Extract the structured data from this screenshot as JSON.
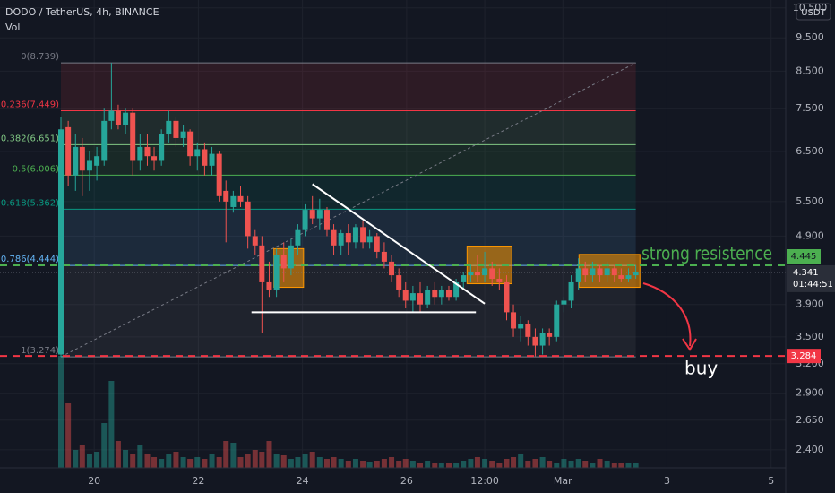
{
  "chart_data": {
    "type": "candlestick",
    "title": "DODO / TetherUS, 4h, BINANCE",
    "volume_label": "Vol",
    "currency": "USDT",
    "up_color": "#26a69a",
    "down_color": "#ef5350",
    "grid": true,
    "log_y": true,
    "xlim": [
      18.19,
      33.28
    ],
    "xticks": [
      20,
      22,
      24,
      26,
      {
        "value": 27.5,
        "label": "12:00"
      },
      {
        "value": 29,
        "label": "Mar"
      },
      {
        "value": 31,
        "label": "3"
      },
      {
        "value": 33,
        "label": "5"
      }
    ],
    "ylim": [
      2.26,
      10.78
    ],
    "yticks": [
      {
        "value": 10.5,
        "label": "10.500"
      },
      {
        "value": 9.5,
        "label": "9.500"
      },
      {
        "value": 8.5,
        "label": "8.500"
      },
      {
        "value": 7.5,
        "label": "7.500"
      },
      {
        "value": 6.5,
        "label": "6.500"
      },
      {
        "value": 5.5,
        "label": "5.500"
      },
      {
        "value": 4.9,
        "label": "4.900"
      },
      {
        "value": 3.9,
        "label": "3.900"
      },
      {
        "value": 3.5,
        "label": "3.500"
      },
      {
        "value": 3.2,
        "label": "3.200"
      },
      {
        "value": 2.9,
        "label": "2.900"
      },
      {
        "value": 2.65,
        "label": "2.650"
      },
      {
        "value": 2.4,
        "label": "2.400"
      }
    ],
    "x": [
      19.36,
      19.5,
      19.64,
      19.77,
      19.91,
      20.05,
      20.19,
      20.33,
      20.46,
      20.6,
      20.74,
      20.88,
      21.02,
      21.15,
      21.29,
      21.43,
      21.57,
      21.71,
      21.84,
      21.98,
      22.12,
      22.26,
      22.4,
      22.53,
      22.67,
      22.81,
      22.95,
      23.09,
      23.22,
      23.36,
      23.5,
      23.64,
      23.78,
      23.91,
      24.05,
      24.19,
      24.33,
      24.47,
      24.6,
      24.74,
      24.88,
      25.02,
      25.16,
      25.29,
      25.43,
      25.57,
      25.71,
      25.85,
      25.98,
      26.12,
      26.26,
      26.4,
      26.54,
      26.67,
      26.81,
      26.95,
      27.09,
      27.23,
      27.36,
      27.5,
      27.64,
      27.78,
      27.92,
      28.05,
      28.19,
      28.33,
      28.47,
      28.61,
      28.74,
      28.88,
      29.02,
      29.16,
      29.3,
      29.43,
      29.57,
      29.71,
      29.85,
      29.99,
      30.12,
      30.26,
      30.4
    ],
    "open": [
      3.3,
      7.05,
      6.0,
      6.6,
      6.1,
      6.2,
      6.3,
      7.2,
      7.45,
      7.1,
      7.4,
      6.3,
      6.6,
      6.4,
      6.3,
      6.9,
      7.2,
      6.8,
      6.95,
      6.4,
      6.55,
      6.2,
      6.45,
      5.7,
      5.4,
      5.6,
      5.5,
      4.9,
      4.75,
      4.2,
      4.1,
      4.6,
      4.4,
      4.75,
      5.0,
      5.35,
      5.2,
      5.35,
      5.0,
      4.75,
      4.95,
      4.8,
      5.05,
      4.8,
      4.9,
      4.65,
      4.5,
      4.3,
      4.1,
      3.95,
      4.05,
      3.9,
      4.1,
      4.0,
      4.1,
      4.0,
      4.2,
      4.3,
      4.35,
      4.3,
      4.4,
      4.25,
      4.2,
      3.8,
      3.6,
      3.65,
      3.5,
      3.4,
      3.55,
      3.5,
      3.9,
      3.95,
      4.2,
      4.4,
      4.3,
      4.4,
      4.3,
      4.4,
      4.3,
      4.25,
      4.3
    ],
    "high": [
      7.3,
      7.2,
      6.9,
      6.8,
      6.5,
      6.6,
      7.5,
      8.739,
      7.6,
      7.5,
      7.5,
      6.9,
      6.9,
      6.6,
      7.0,
      7.45,
      7.3,
      7.1,
      7.0,
      6.7,
      6.7,
      6.6,
      6.5,
      5.9,
      5.7,
      5.8,
      5.6,
      5.0,
      4.9,
      4.5,
      4.7,
      4.8,
      4.85,
      5.1,
      5.45,
      5.6,
      5.55,
      5.4,
      5.1,
      5.0,
      5.1,
      5.1,
      5.15,
      5.0,
      4.95,
      4.8,
      4.6,
      4.4,
      4.2,
      4.15,
      4.2,
      4.15,
      4.2,
      4.15,
      4.15,
      4.25,
      4.35,
      4.45,
      4.6,
      4.65,
      4.5,
      4.4,
      4.3,
      3.9,
      3.75,
      3.7,
      3.6,
      3.6,
      3.6,
      3.95,
      4.0,
      4.3,
      4.55,
      4.5,
      4.5,
      4.45,
      4.5,
      4.45,
      4.4,
      4.4,
      4.45
    ],
    "low": [
      3.274,
      5.8,
      5.7,
      5.6,
      5.7,
      5.9,
      6.2,
      7.0,
      7.0,
      6.9,
      6.0,
      6.1,
      6.2,
      6.1,
      6.2,
      6.7,
      6.6,
      6.6,
      6.2,
      6.1,
      6.0,
      6.0,
      5.5,
      4.8,
      5.3,
      5.4,
      4.7,
      4.6,
      3.55,
      4.0,
      4.0,
      4.2,
      4.3,
      4.6,
      4.9,
      5.1,
      5.0,
      4.9,
      4.6,
      4.6,
      4.6,
      4.7,
      4.7,
      4.7,
      4.55,
      4.4,
      4.2,
      4.0,
      3.85,
      3.8,
      3.8,
      3.85,
      3.9,
      3.9,
      3.95,
      3.95,
      4.1,
      4.2,
      4.2,
      4.2,
      4.15,
      4.1,
      3.7,
      3.5,
      3.45,
      3.4,
      3.28,
      3.3,
      3.4,
      3.45,
      3.8,
      3.85,
      4.1,
      4.2,
      4.2,
      4.2,
      4.2,
      4.2,
      4.2,
      4.2,
      4.25
    ],
    "close": [
      7.0,
      6.0,
      6.6,
      6.1,
      6.3,
      6.4,
      7.2,
      7.45,
      7.1,
      7.4,
      6.3,
      6.6,
      6.4,
      6.3,
      6.9,
      7.2,
      6.8,
      6.95,
      6.4,
      6.55,
      6.2,
      6.45,
      5.6,
      5.5,
      5.6,
      5.5,
      4.9,
      4.75,
      4.2,
      4.1,
      4.6,
      4.4,
      4.75,
      5.0,
      5.35,
      5.2,
      5.35,
      5.0,
      4.75,
      4.95,
      4.8,
      5.05,
      4.8,
      4.9,
      4.65,
      4.5,
      4.3,
      4.1,
      3.95,
      4.05,
      3.9,
      4.1,
      4.0,
      4.1,
      4.0,
      4.2,
      4.3,
      4.35,
      4.3,
      4.4,
      4.25,
      4.2,
      3.8,
      3.6,
      3.65,
      3.5,
      3.4,
      3.55,
      3.5,
      3.9,
      3.95,
      4.2,
      4.4,
      4.3,
      4.4,
      4.3,
      4.4,
      4.3,
      4.25,
      4.3,
      4.341
    ],
    "volume": [
      125,
      72,
      20,
      25,
      15,
      18,
      50,
      97,
      30,
      20,
      15,
      25,
      15,
      12,
      10,
      15,
      18,
      12,
      10,
      12,
      10,
      15,
      12,
      30,
      28,
      12,
      15,
      20,
      18,
      30,
      15,
      14,
      10,
      12,
      15,
      18,
      12,
      10,
      12,
      10,
      8,
      10,
      8,
      7,
      8,
      10,
      12,
      8,
      10,
      8,
      6,
      8,
      6,
      5,
      6,
      5,
      8,
      10,
      12,
      10,
      8,
      6,
      10,
      12,
      15,
      8,
      10,
      12,
      8,
      6,
      10,
      8,
      10,
      8,
      6,
      10,
      8,
      6,
      5,
      6,
      5
    ],
    "vlim": [
      0,
      130
    ],
    "fib": {
      "x": [
        19.36,
        30.4
      ],
      "levels": [
        {
          "label": "0(8.739)",
          "value": 8.739,
          "color": "#787b86"
        },
        {
          "label": "0.236(7.449)",
          "value": 7.449,
          "color": "#f23645"
        },
        {
          "label": "0.382(6.651)",
          "value": 6.651,
          "color": "#81c784"
        },
        {
          "label": "0.5(6.006)",
          "value": 6.006,
          "color": "#4caf50"
        },
        {
          "label": "0.618(5.362)",
          "value": 5.362,
          "color": "#089981"
        },
        {
          "label": "0.786(4.444)",
          "value": 4.444,
          "color": "#64b5f6"
        },
        {
          "label": "1(3.274)",
          "value": 3.274,
          "color": "#787b86"
        }
      ]
    },
    "lines": [
      {
        "x": [
          24.19,
          27.5
        ],
        "y": [
          5.83,
          3.91
        ],
        "color": "#ffffff"
      },
      {
        "x": [
          23.02,
          27.33
        ],
        "y": [
          3.8,
          3.8
        ],
        "color": "#ffffff"
      }
    ],
    "boxes": [
      {
        "x": [
          23.45,
          24.02
        ],
        "y": [
          4.13,
          4.7
        ]
      },
      {
        "x": [
          27.16,
          28.02
        ],
        "y": [
          4.18,
          4.74
        ]
      },
      {
        "x": [
          29.31,
          30.48
        ],
        "y": [
          4.13,
          4.61
        ]
      }
    ],
    "levels": [
      {
        "value": 4.445,
        "color": "#4caf50"
      },
      {
        "value": 3.284,
        "color": "#f23645"
      }
    ],
    "last_price": {
      "value": 4.341,
      "countdown": "01:44:51"
    },
    "annotations": [
      {
        "text": "strong resistence",
        "color": "#4caf50"
      },
      {
        "text": "buy",
        "color": "#ffffff"
      }
    ]
  }
}
